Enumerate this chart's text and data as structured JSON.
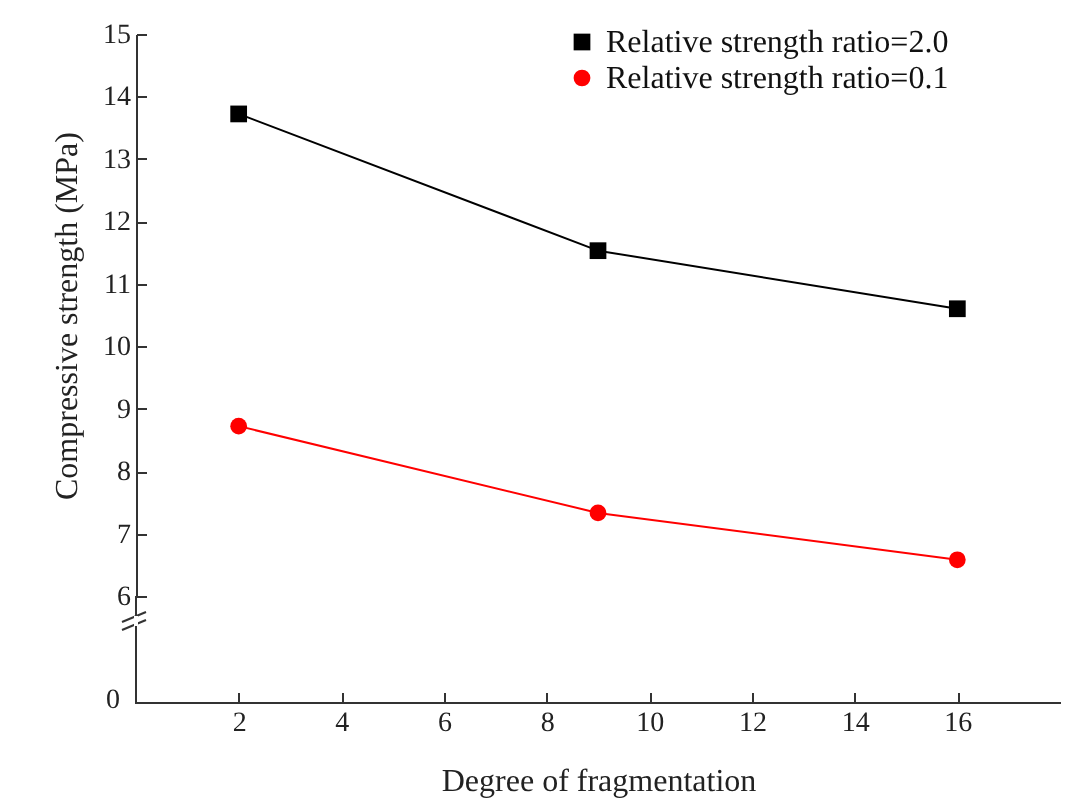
{
  "chart_data": {
    "type": "line",
    "xlabel": "Degree of fragmentation",
    "ylabel": "Compressive strength (MPa)",
    "x": [
      2,
      9,
      16
    ],
    "series": [
      {
        "name": "Relative strength ratio=2.0",
        "color": "#000000",
        "marker": "square",
        "values": [
          13.72,
          11.53,
          10.6
        ]
      },
      {
        "name": "Relative strength ratio=0.1",
        "color": "#ff0000",
        "marker": "circle",
        "values": [
          8.72,
          7.33,
          6.58
        ]
      }
    ],
    "xlim": [
      0,
      18
    ],
    "xticks": [
      2,
      4,
      6,
      8,
      10,
      12,
      14,
      16
    ],
    "ylim": [
      6,
      15
    ],
    "yticks": [
      6,
      7,
      8,
      9,
      10,
      11,
      12,
      13,
      14,
      15
    ],
    "annotations": [
      "0"
    ],
    "legend": "top right"
  }
}
